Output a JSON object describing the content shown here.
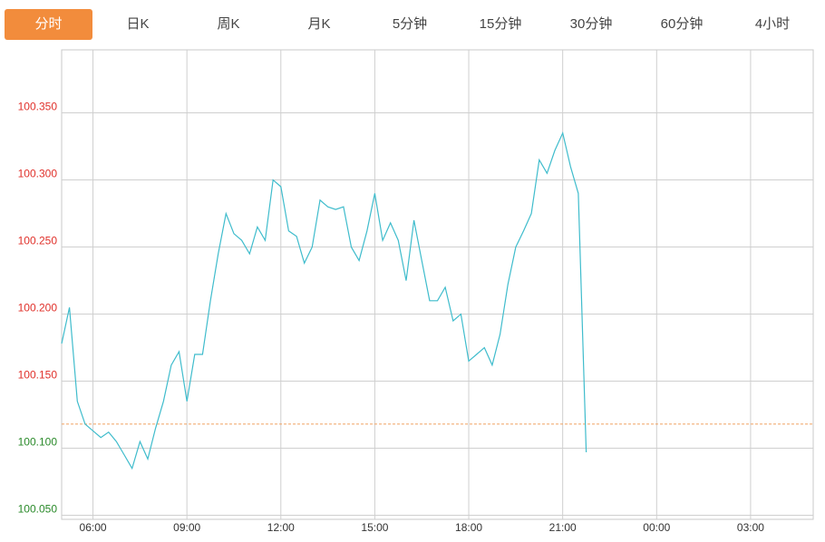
{
  "tabs": [
    "分时",
    "日K",
    "周K",
    "月K",
    "5分钟",
    "15分钟",
    "30分钟",
    "60分钟",
    "4小时"
  ],
  "active_tab": 0,
  "chart_data": {
    "type": "line",
    "x": [
      5,
      5.25,
      5.5,
      5.75,
      6,
      6.25,
      6.5,
      6.75,
      7,
      7.25,
      7.5,
      7.75,
      8,
      8.25,
      8.5,
      8.75,
      9,
      9.25,
      9.5,
      9.75,
      10,
      10.25,
      10.5,
      10.75,
      11,
      11.25,
      11.5,
      11.75,
      12,
      12.25,
      12.5,
      12.75,
      13,
      13.25,
      13.5,
      13.75,
      14,
      14.25,
      14.5,
      14.75,
      15,
      15.25,
      15.5,
      15.75,
      16,
      16.25,
      16.5,
      16.75,
      17,
      17.25,
      17.5,
      17.75,
      18,
      18.25,
      18.5,
      18.75,
      19,
      19.25,
      19.5,
      19.75,
      20,
      20.25,
      20.5,
      20.75,
      21,
      21.25,
      21.5,
      21.75
    ],
    "series": [
      {
        "color": "#3fbccc",
        "values": [
          100.178,
          100.205,
          100.135,
          100.118,
          100.113,
          100.108,
          100.112,
          100.105,
          100.095,
          100.085,
          100.105,
          100.092,
          100.115,
          100.135,
          100.162,
          100.172,
          100.135,
          100.17,
          100.17,
          100.21,
          100.245,
          100.275,
          100.26,
          100.255,
          100.245,
          100.265,
          100.255,
          100.3,
          100.295,
          100.262,
          100.258,
          100.238,
          100.25,
          100.285,
          100.28,
          100.278,
          100.28,
          100.25,
          100.24,
          100.262,
          100.29,
          100.255,
          100.268,
          100.255,
          100.225,
          100.27,
          100.24,
          100.21,
          100.21,
          100.22,
          100.195,
          100.2,
          100.165,
          100.17,
          100.175,
          100.162,
          100.185,
          100.222,
          100.25,
          100.262,
          100.275,
          100.315,
          100.305,
          100.322,
          100.335,
          100.31,
          100.29,
          100.097
        ]
      }
    ],
    "xlim": [
      5,
      29
    ],
    "xticks": [
      {
        "value": 6,
        "label": "06:00"
      },
      {
        "value": 9,
        "label": "09:00"
      },
      {
        "value": 12,
        "label": "12:00"
      },
      {
        "value": 15,
        "label": "15:00"
      },
      {
        "value": 18,
        "label": "18:00"
      },
      {
        "value": 21,
        "label": "21:00"
      },
      {
        "value": 24,
        "label": "00:00"
      },
      {
        "value": 27,
        "label": "03:00"
      }
    ],
    "ylim": [
      100.047,
      100.397
    ],
    "yticks": [
      {
        "value": 100.05,
        "label": "100.050"
      },
      {
        "value": 100.1,
        "label": "100.100"
      },
      {
        "value": 100.15,
        "label": "100.150"
      },
      {
        "value": 100.2,
        "label": "100.200"
      },
      {
        "value": 100.25,
        "label": "100.250"
      },
      {
        "value": 100.3,
        "label": "100.300"
      },
      {
        "value": 100.35,
        "label": "100.350"
      }
    ],
    "reference": 100.118,
    "reference_color": "#f0a060",
    "up_color": "#e0302a",
    "down_color": "#2a8a2a",
    "grid": true
  }
}
